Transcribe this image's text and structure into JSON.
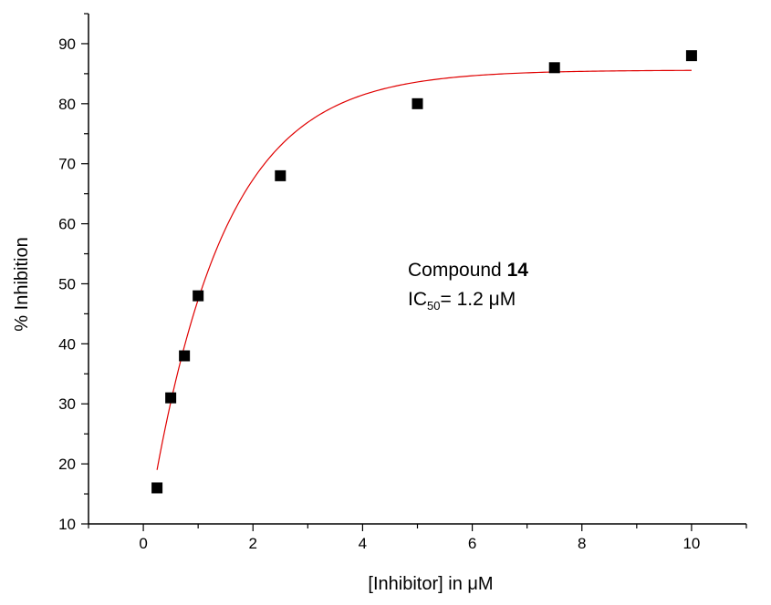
{
  "chart_data": {
    "type": "scatter",
    "xlabel": "[Inhibitor] in μM",
    "ylabel": "% Inhibition",
    "xlim": [
      -1,
      11
    ],
    "ylim": [
      10,
      95
    ],
    "x_ticks": [
      0,
      2,
      4,
      6,
      8,
      10
    ],
    "y_ticks": [
      10,
      20,
      30,
      40,
      50,
      60,
      70,
      80,
      90
    ],
    "grid": false,
    "points": [
      {
        "x": 0.25,
        "y": 16
      },
      {
        "x": 0.5,
        "y": 31
      },
      {
        "x": 0.75,
        "y": 38
      },
      {
        "x": 1.0,
        "y": 48
      },
      {
        "x": 2.5,
        "y": 68
      },
      {
        "x": 5.0,
        "y": 80
      },
      {
        "x": 7.5,
        "y": 86
      },
      {
        "x": 10.0,
        "y": 88
      }
    ],
    "fit_curve": {
      "description": "exponential saturation fit",
      "color": "#e00000",
      "x_range": [
        0.25,
        10
      ],
      "plateau": 85.6,
      "y_at_start": 19,
      "rate": 0.74
    },
    "marker_color": "#000000",
    "annotation": {
      "line1_text": "Compound ",
      "line1_bold": "14",
      "line2_prefix": "IC",
      "line2_sub": "50",
      "line2_suffix": "= 1.2 μM"
    }
  }
}
